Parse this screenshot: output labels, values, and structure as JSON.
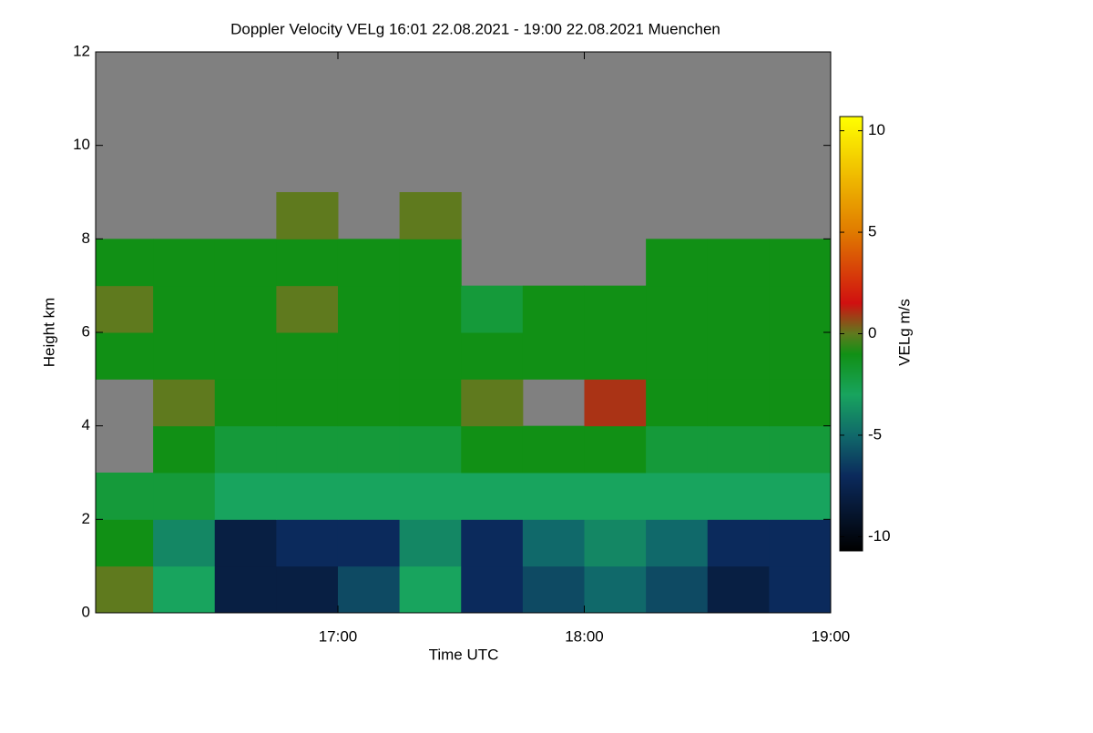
{
  "chart_data": {
    "type": "heatmap",
    "title": "Doppler Velocity VELg   16:01 22.08.2021 - 19:00 22.08.2021 Muenchen",
    "x_label": "Time UTC",
    "y_label": "Height km",
    "colorbar_label": "VELg m/s",
    "x": [
      16.125,
      16.375,
      16.625,
      16.875,
      17.125,
      17.375,
      17.625,
      17.875,
      18.125,
      18.375,
      18.625,
      18.875
    ],
    "y": [
      0.5,
      1.5,
      2.5,
      3.5,
      4.5,
      5.5,
      6.5,
      7.5,
      8.5,
      9.5,
      10.5,
      11.5
    ],
    "z": [
      [
        0,
        -3,
        -8,
        -8,
        -6,
        -3,
        -7,
        -6,
        -5,
        -6,
        -8,
        -7
      ],
      [
        -1,
        -4,
        -8,
        -7,
        -7,
        -4,
        -7,
        -5,
        -4,
        -5,
        -7,
        -7
      ],
      [
        -2,
        -2,
        -3,
        -3,
        -3,
        -3,
        -3,
        -3,
        -3,
        -3,
        -3,
        -3
      ],
      [
        null,
        -1,
        -2,
        -2,
        -2,
        -2,
        -1,
        -1,
        -1,
        -2,
        -2,
        -2
      ],
      [
        null,
        0,
        -1,
        -1,
        -1,
        -1,
        0,
        null,
        1,
        -1,
        -1,
        -1
      ],
      [
        -1,
        -1,
        -1,
        -1,
        -1,
        -1,
        -1,
        -1,
        -1,
        -1,
        -1,
        -1
      ],
      [
        0,
        -1,
        -1,
        0,
        -1,
        -1,
        -2,
        -1,
        -1,
        -1,
        -1,
        -1
      ],
      [
        -1,
        -1,
        -1,
        -1,
        -1,
        -1,
        null,
        null,
        null,
        -1,
        -1,
        -1
      ],
      [
        null,
        null,
        null,
        0,
        null,
        0,
        null,
        null,
        null,
        null,
        null,
        null
      ],
      [
        null,
        null,
        null,
        null,
        null,
        null,
        null,
        null,
        null,
        null,
        null,
        null
      ],
      [
        null,
        null,
        null,
        null,
        null,
        null,
        null,
        null,
        null,
        null,
        null,
        null
      ],
      [
        null,
        null,
        null,
        null,
        null,
        null,
        null,
        null,
        null,
        null,
        null,
        null
      ]
    ],
    "xlim": [
      16.0167,
      19.0
    ],
    "xticks": [
      {
        "value": 17,
        "label": "17:00"
      },
      {
        "value": 18,
        "label": "18:00"
      },
      {
        "value": 19,
        "label": "19:00"
      }
    ],
    "ylim": [
      0,
      12
    ],
    "yticks": [
      0,
      2,
      4,
      6,
      8,
      10,
      12
    ],
    "zlim": [
      -10.7,
      10.7
    ],
    "zticks": [
      -10,
      -5,
      0,
      5,
      10
    ],
    "colorscale": [
      [
        -10.7,
        "#000000"
      ],
      [
        -7,
        "#0b2a5c"
      ],
      [
        -5,
        "#10696a"
      ],
      [
        -3,
        "#18a45e"
      ],
      [
        -1,
        "#119015"
      ],
      [
        0,
        "#5f7a1e"
      ],
      [
        1.5,
        "#d01010"
      ],
      [
        5,
        "#e07a00"
      ],
      [
        10.7,
        "#ffff00"
      ]
    ],
    "nan_color": "#808080"
  }
}
